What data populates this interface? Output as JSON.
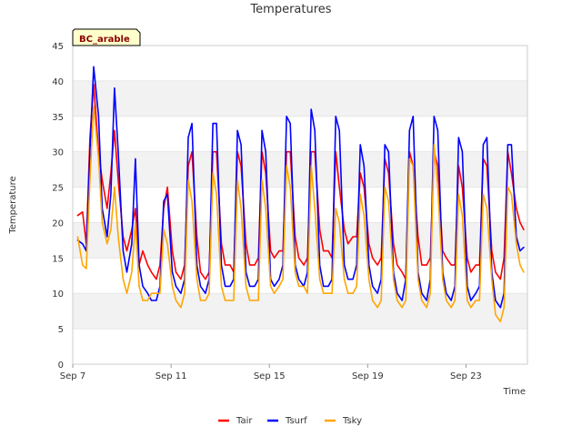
{
  "chart_data": {
    "type": "line",
    "title": "Temperatures",
    "badge": "BC_arable",
    "xlabel": "Time",
    "ylabel": "Temperature",
    "ylim": [
      0,
      45
    ],
    "yticks": [
      0,
      5,
      10,
      15,
      20,
      25,
      30,
      35,
      40,
      45
    ],
    "xlim_days": [
      7,
      25.5
    ],
    "xticks": [
      {
        "label": "Sep 7",
        "day": 7
      },
      {
        "label": "Sep 11",
        "day": 11
      },
      {
        "label": "Sep 15",
        "day": 15
      },
      {
        "label": "Sep 19",
        "day": 19
      },
      {
        "label": "Sep 23",
        "day": 23
      }
    ],
    "grid": "horizontal alternating bands",
    "legend_position": "bottom",
    "colors": {
      "Tair": "#ff0000",
      "Tsurf": "#0000ff",
      "Tsky": "#ffa500",
      "band": "#f2f2f2",
      "badge_bg": "#ffffcc",
      "badge_text": "#8b0000"
    },
    "series": [
      {
        "name": "Tair",
        "x": [
          7.2,
          7.4,
          7.55,
          7.7,
          7.85,
          8.05,
          8.2,
          8.4,
          8.55,
          8.7,
          8.85,
          9.05,
          9.2,
          9.4,
          9.55,
          9.7,
          9.85,
          10.05,
          10.2,
          10.4,
          10.55,
          10.7,
          10.85,
          11.05,
          11.2,
          11.4,
          11.55,
          11.7,
          11.85,
          12.05,
          12.2,
          12.4,
          12.55,
          12.7,
          12.85,
          13.05,
          13.2,
          13.4,
          13.55,
          13.7,
          13.85,
          14.05,
          14.2,
          14.4,
          14.55,
          14.7,
          14.85,
          15.05,
          15.2,
          15.4,
          15.55,
          15.7,
          15.85,
          16.05,
          16.2,
          16.4,
          16.55,
          16.7,
          16.85,
          17.05,
          17.2,
          17.4,
          17.55,
          17.7,
          17.85,
          18.05,
          18.2,
          18.4,
          18.55,
          18.7,
          18.85,
          19.05,
          19.2,
          19.4,
          19.55,
          19.7,
          19.85,
          20.05,
          20.2,
          20.4,
          20.55,
          20.7,
          20.85,
          21.05,
          21.2,
          21.4,
          21.55,
          21.7,
          21.85,
          22.05,
          22.2,
          22.4,
          22.55,
          22.7,
          22.85,
          23.05,
          23.2,
          23.4,
          23.55,
          23.7,
          23.85,
          24.05,
          24.2,
          24.4,
          24.55,
          24.7,
          24.85,
          25.05,
          25.2,
          25.35
        ],
        "y": [
          21,
          21.5,
          17,
          32,
          39.5,
          30,
          26,
          22,
          27,
          33,
          26,
          18,
          16,
          19,
          22,
          14,
          16,
          14,
          13,
          12,
          14,
          22,
          25,
          16,
          13,
          12,
          14,
          28,
          30,
          18,
          13,
          12,
          13,
          30,
          30,
          17,
          14,
          14,
          13,
          30,
          28,
          17,
          14,
          14,
          15,
          30,
          27,
          16,
          15,
          16,
          16,
          30,
          30,
          18,
          15,
          14,
          15,
          30,
          30,
          19,
          16,
          16,
          15,
          30,
          25,
          19,
          17,
          18,
          18,
          27,
          25,
          17,
          15,
          14,
          15,
          29,
          27,
          17,
          14,
          13,
          12,
          30,
          28,
          18,
          14,
          14,
          15,
          30,
          28,
          16,
          15,
          14,
          14,
          28,
          25,
          15,
          13,
          14,
          14,
          29,
          28,
          16,
          13,
          12,
          15,
          30,
          27,
          22,
          20,
          19
        ]
      },
      {
        "name": "Tsurf",
        "x": [
          7.2,
          7.4,
          7.55,
          7.7,
          7.85,
          8.05,
          8.2,
          8.4,
          8.55,
          8.7,
          8.85,
          9.05,
          9.2,
          9.4,
          9.55,
          9.7,
          9.85,
          10.05,
          10.2,
          10.4,
          10.55,
          10.7,
          10.85,
          11.05,
          11.2,
          11.4,
          11.55,
          11.7,
          11.85,
          12.05,
          12.2,
          12.4,
          12.55,
          12.7,
          12.85,
          13.05,
          13.2,
          13.4,
          13.55,
          13.7,
          13.85,
          14.05,
          14.2,
          14.4,
          14.55,
          14.7,
          14.85,
          15.05,
          15.2,
          15.4,
          15.55,
          15.7,
          15.85,
          16.05,
          16.2,
          16.4,
          16.55,
          16.7,
          16.85,
          17.05,
          17.2,
          17.4,
          17.55,
          17.7,
          17.85,
          18.05,
          18.2,
          18.4,
          18.55,
          18.7,
          18.85,
          19.05,
          19.2,
          19.4,
          19.55,
          19.7,
          19.85,
          20.05,
          20.2,
          20.4,
          20.55,
          20.7,
          20.85,
          21.05,
          21.2,
          21.4,
          21.55,
          21.7,
          21.85,
          22.05,
          22.2,
          22.4,
          22.55,
          22.7,
          22.85,
          23.05,
          23.2,
          23.4,
          23.55,
          23.7,
          23.85,
          24.05,
          24.2,
          24.4,
          24.55,
          24.7,
          24.85,
          25.05,
          25.2,
          25.35
        ],
        "y": [
          17.5,
          17,
          16,
          30,
          42,
          35,
          22,
          18,
          24,
          39,
          30,
          16,
          13,
          17,
          29,
          14,
          11,
          10,
          9,
          9,
          11,
          23,
          24,
          13,
          11,
          10,
          12,
          32,
          34,
          14,
          11,
          10,
          12,
          34,
          34,
          14,
          11,
          11,
          12,
          33,
          31,
          13,
          11,
          11,
          12,
          33,
          30,
          12,
          11,
          12,
          14,
          35,
          34,
          14,
          12,
          11,
          13,
          36,
          33,
          14,
          11,
          11,
          12,
          35,
          33,
          14,
          12,
          12,
          14,
          31,
          28,
          14,
          11,
          10,
          12,
          31,
          30,
          13,
          10,
          9,
          12,
          33,
          35,
          13,
          10,
          9,
          12,
          35,
          33,
          13,
          10,
          9,
          11,
          32,
          30,
          11,
          9,
          10,
          11,
          31,
          32,
          13,
          9,
          8,
          10,
          31,
          31,
          18,
          16,
          16.5
        ]
      },
      {
        "name": "Tsky",
        "x": [
          7.2,
          7.4,
          7.55,
          7.7,
          7.85,
          8.05,
          8.2,
          8.4,
          8.55,
          8.7,
          8.85,
          9.05,
          9.2,
          9.4,
          9.55,
          9.7,
          9.85,
          10.05,
          10.2,
          10.4,
          10.55,
          10.7,
          10.85,
          11.05,
          11.2,
          11.4,
          11.55,
          11.7,
          11.85,
          12.05,
          12.2,
          12.4,
          12.55,
          12.7,
          12.85,
          13.05,
          13.2,
          13.4,
          13.55,
          13.7,
          13.85,
          14.05,
          14.2,
          14.4,
          14.55,
          14.7,
          14.85,
          15.05,
          15.2,
          15.4,
          15.55,
          15.7,
          15.85,
          16.05,
          16.2,
          16.4,
          16.55,
          16.7,
          16.85,
          17.05,
          17.2,
          17.4,
          17.55,
          17.7,
          17.85,
          18.05,
          18.2,
          18.4,
          18.55,
          18.7,
          18.85,
          19.05,
          19.2,
          19.4,
          19.55,
          19.7,
          19.85,
          20.05,
          20.2,
          20.4,
          20.55,
          20.7,
          20.85,
          21.05,
          21.2,
          21.4,
          21.55,
          21.7,
          21.85,
          22.05,
          22.2,
          22.4,
          22.55,
          22.7,
          22.85,
          23.05,
          23.2,
          23.4,
          23.55,
          23.7,
          23.85,
          24.05,
          24.2,
          24.4,
          24.55,
          24.7,
          24.85,
          25.05,
          25.2,
          25.35
        ],
        "y": [
          18,
          14,
          13.5,
          26,
          36.5,
          29,
          20,
          17,
          19,
          25,
          18,
          12,
          10,
          13,
          20,
          11,
          9,
          9,
          10,
          10,
          10,
          19,
          17,
          11,
          9,
          8,
          10,
          26,
          23,
          12,
          9,
          9,
          10,
          27,
          24,
          11,
          9,
          9,
          9,
          26,
          22,
          11,
          9,
          9,
          9,
          26,
          22,
          11,
          10,
          11,
          12,
          28,
          25,
          13,
          11,
          11,
          10,
          28,
          22,
          12,
          10,
          10,
          10,
          22,
          20,
          12,
          10,
          10,
          11,
          24,
          21,
          12,
          9,
          8,
          9,
          25,
          23,
          12,
          9,
          8,
          9,
          29,
          28,
          12,
          9,
          8,
          10,
          31,
          25,
          12,
          9,
          8,
          9,
          24,
          21,
          9,
          8,
          9,
          9,
          24,
          22,
          12,
          7,
          6,
          8,
          25,
          24,
          17,
          14,
          13
        ]
      }
    ]
  }
}
